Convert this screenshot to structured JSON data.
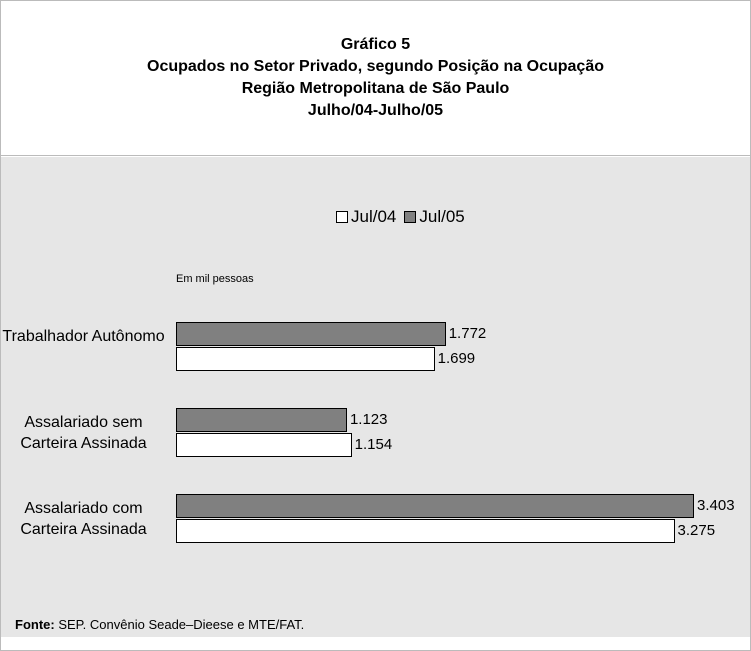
{
  "chart_data": {
    "type": "hbar",
    "title": [
      "Gráfico 5",
      "Ocupados no Setor Privado, segundo Posição na Ocupação",
      "Região Metropolitana de São Paulo",
      "Julho/04-Julho/05"
    ],
    "unit_note": "Em mil pessoas",
    "categories": [
      "Trabalhador Autônomo",
      "Assalariado sem Carteira Assinada",
      "Assalariado com Carteira Assinada"
    ],
    "series": [
      {
        "name": "Jul/04",
        "color": "#ffffff",
        "values": [
          1699,
          1154,
          3275
        ],
        "value_labels": [
          "1.699",
          "1.154",
          "3.275"
        ]
      },
      {
        "name": "Jul/05",
        "color": "#808080",
        "values": [
          1772,
          1123,
          3403
        ],
        "value_labels": [
          "1.772",
          "1.123",
          "3.403"
        ]
      }
    ],
    "source_label": "Fonte:",
    "source": "SEP. Convênio Seade–Dieese e MTE/FAT."
  }
}
